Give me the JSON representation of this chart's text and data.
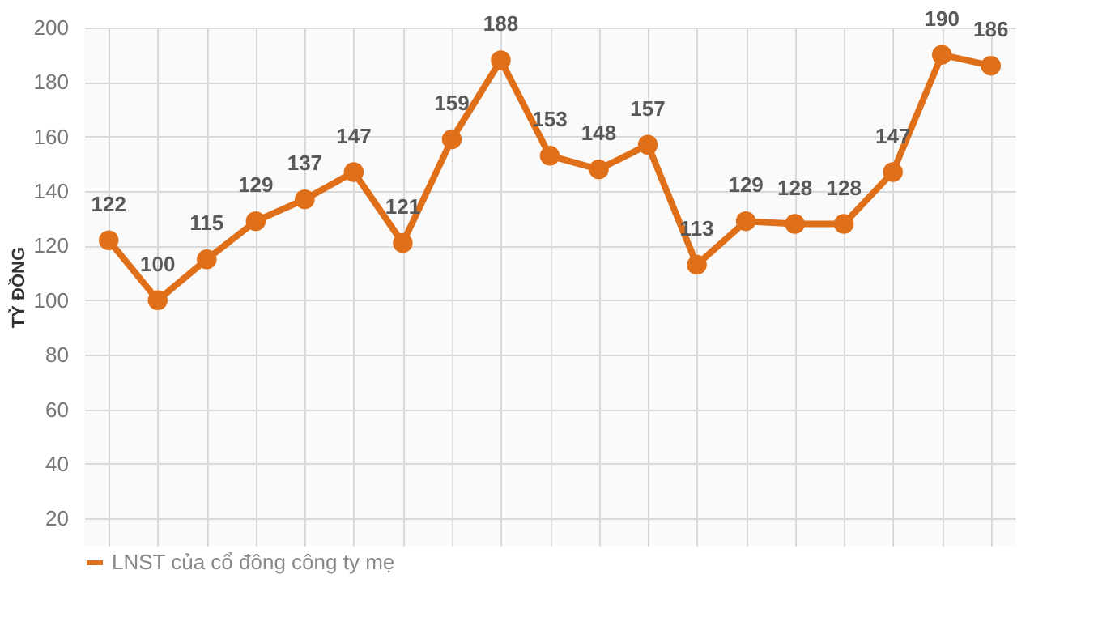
{
  "chart_data": {
    "type": "line",
    "ylabel": "TỶ ĐỒNG",
    "categories": [
      null,
      null,
      null,
      null,
      null,
      null,
      null,
      null,
      null,
      null,
      null,
      null,
      null,
      null,
      null,
      null,
      null,
      null,
      null
    ],
    "series": [
      {
        "name": "LNST của cổ đông công ty mẹ",
        "color": "#e06f1a",
        "values": [
          122,
          100,
          115,
          129,
          137,
          147,
          121,
          159,
          188,
          153,
          148,
          157,
          113,
          129,
          128,
          128,
          147,
          190,
          186
        ]
      }
    ],
    "ylim": [
      10,
      200
    ],
    "yticks": [
      20,
      40,
      60,
      80,
      100,
      120,
      140,
      160,
      180,
      200
    ],
    "grid": true,
    "data_labels": true,
    "marker": "circle",
    "line_style": "solid",
    "legend": "bottom",
    "tick_labels": "y"
  }
}
